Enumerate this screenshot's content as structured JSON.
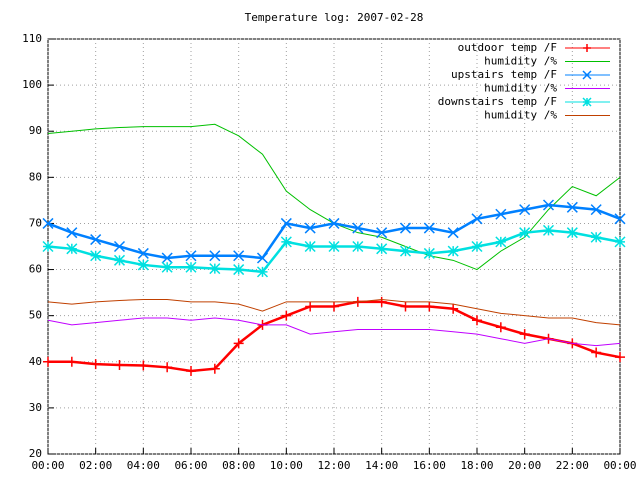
{
  "chart_data": {
    "type": "line",
    "title": "Temperature log: 2007-02-28",
    "x": [
      0,
      1,
      2,
      3,
      4,
      5,
      6,
      7,
      8,
      9,
      10,
      11,
      12,
      13,
      14,
      15,
      16,
      17,
      18,
      19,
      20,
      21,
      22,
      23,
      24
    ],
    "xlim": [
      0,
      24
    ],
    "xticks": [
      {
        "value": 0,
        "label": "00:00"
      },
      {
        "value": 2,
        "label": "02:00"
      },
      {
        "value": 4,
        "label": "04:00"
      },
      {
        "value": 6,
        "label": "06:00"
      },
      {
        "value": 8,
        "label": "08:00"
      },
      {
        "value": 10,
        "label": "10:00"
      },
      {
        "value": 12,
        "label": "12:00"
      },
      {
        "value": 14,
        "label": "14:00"
      },
      {
        "value": 16,
        "label": "16:00"
      },
      {
        "value": 18,
        "label": "18:00"
      },
      {
        "value": 20,
        "label": "20:00"
      },
      {
        "value": 22,
        "label": "22:00"
      },
      {
        "value": 24,
        "label": "00:00"
      }
    ],
    "ylim": [
      20,
      110
    ],
    "yticks": [
      20,
      30,
      40,
      50,
      60,
      70,
      80,
      90,
      100,
      110
    ],
    "grid": true,
    "legend": "top-right",
    "series": [
      {
        "name": "outdoor temp /F",
        "color": "#ff0000",
        "marker": "plus",
        "values": [
          40,
          40,
          39.5,
          39.3,
          39.2,
          38.8,
          38,
          38.5,
          44,
          48,
          50,
          52,
          52,
          53,
          53,
          52,
          52,
          51.5,
          49,
          47.5,
          46,
          45,
          44,
          42,
          41
        ]
      },
      {
        "name": "humidity /%",
        "color": "#00c000",
        "values": [
          89.5,
          90,
          90.5,
          90.8,
          91,
          91,
          91,
          91.5,
          89,
          85,
          77,
          73,
          70,
          68,
          67,
          65,
          63,
          62,
          60,
          64,
          67,
          73,
          78,
          76,
          80
        ]
      },
      {
        "name": "upstairs temp /F",
        "color": "#0080ff",
        "marker": "cross",
        "values": [
          70,
          68,
          66.5,
          65,
          63.5,
          62.5,
          63,
          63,
          63,
          62.5,
          70,
          69,
          70,
          69,
          68,
          69,
          69,
          68,
          71,
          72,
          73,
          74,
          73.5,
          73,
          71
        ]
      },
      {
        "name": "humidity /%",
        "color": "#c000ff",
        "values": [
          49,
          48,
          48.5,
          49,
          49.5,
          49.5,
          49,
          49.5,
          49,
          48,
          48,
          46,
          46.5,
          47,
          47,
          47,
          47,
          46.5,
          46,
          45,
          44,
          45,
          44,
          43.5,
          44
        ]
      },
      {
        "name": "downstairs temp /F",
        "color": "#00e0e0",
        "marker": "star",
        "values": [
          65,
          64.5,
          63,
          62,
          61,
          60.5,
          60.5,
          60.2,
          60,
          59.5,
          66,
          65,
          65,
          65,
          64.5,
          64,
          63.5,
          64,
          65,
          66,
          68,
          68.5,
          68,
          67,
          66
        ]
      },
      {
        "name": "humidity /%",
        "color": "#c04000",
        "values": [
          53,
          52.5,
          53,
          53.3,
          53.5,
          53.5,
          53,
          53,
          52.5,
          51,
          53,
          53,
          53,
          53,
          53.5,
          53,
          53,
          52.5,
          51.5,
          50.5,
          50,
          49.5,
          49.5,
          48.5,
          48
        ]
      }
    ]
  }
}
